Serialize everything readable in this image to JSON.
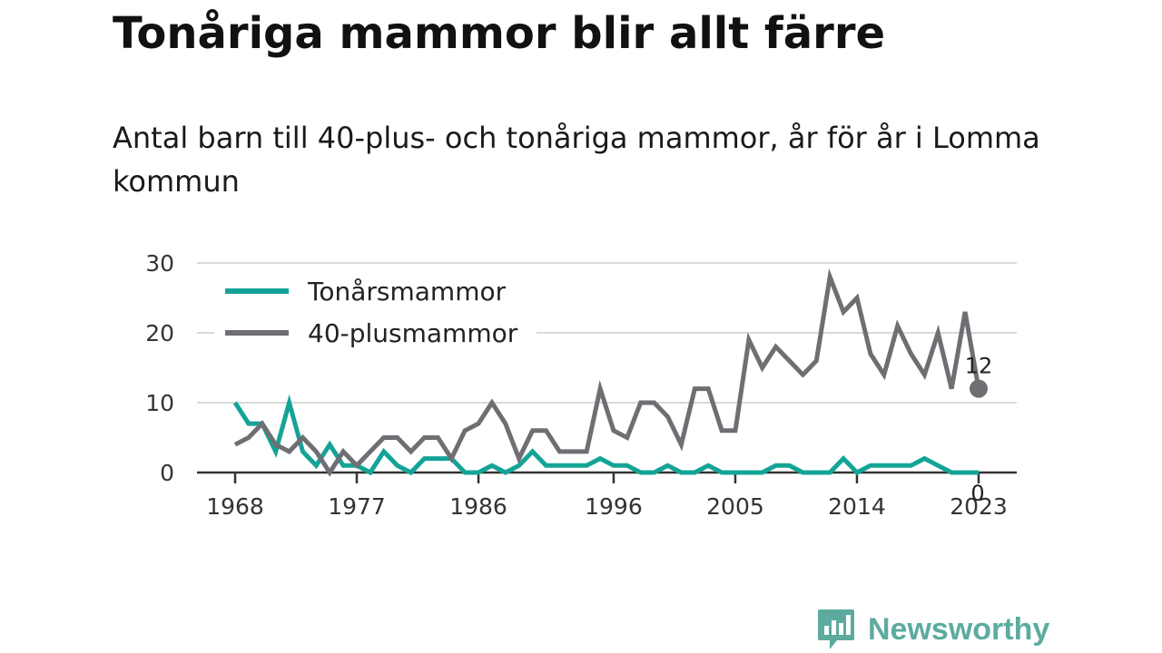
{
  "title": "Tonåriga mammor blir allt färre",
  "subtitle": "Antal barn till 40-plus- och tonåriga mammor, år för år i Lomma kommun",
  "brand": {
    "name": "Newsworthy",
    "icon": "newsworthy-logo-icon",
    "color": "#5cab9e"
  },
  "chart_data": {
    "type": "line",
    "title": "Tonåriga mammor blir allt färre",
    "subtitle": "Antal barn till 40-plus- och tonåriga mammor, år för år i Lomma kommun",
    "xlabel": "",
    "ylabel": "",
    "x": [
      1968,
      1969,
      1970,
      1971,
      1972,
      1973,
      1974,
      1975,
      1976,
      1977,
      1978,
      1979,
      1980,
      1981,
      1982,
      1983,
      1984,
      1985,
      1986,
      1987,
      1988,
      1989,
      1990,
      1991,
      1992,
      1993,
      1994,
      1995,
      1996,
      1997,
      1998,
      1999,
      2000,
      2001,
      2002,
      2003,
      2004,
      2005,
      2006,
      2007,
      2008,
      2009,
      2010,
      2011,
      2012,
      2013,
      2014,
      2015,
      2016,
      2017,
      2018,
      2019,
      2020,
      2021,
      2022,
      2023
    ],
    "xlim": [
      1968,
      2023
    ],
    "x_ticks": [
      "1968",
      "1977",
      "1986",
      "1996",
      "2005",
      "2014",
      "2023"
    ],
    "ylim": [
      0,
      30
    ],
    "y_ticks": [
      "0",
      "10",
      "20",
      "30"
    ],
    "grid": true,
    "legend_position": "top-left",
    "series": [
      {
        "name": "Tonårsmammor",
        "color": "#14a497",
        "values": [
          10,
          7,
          7,
          3,
          10,
          3,
          1,
          4,
          1,
          1,
          0,
          3,
          1,
          0,
          2,
          2,
          2,
          0,
          0,
          1,
          0,
          1,
          3,
          1,
          1,
          1,
          1,
          2,
          1,
          1,
          0,
          0,
          1,
          0,
          0,
          1,
          0,
          0,
          0,
          0,
          1,
          1,
          0,
          0,
          0,
          2,
          0,
          1,
          1,
          1,
          1,
          2,
          1,
          0,
          0,
          0
        ],
        "end_label": "0"
      },
      {
        "name": "40-plusmammor",
        "color": "#6e6e73",
        "values": [
          4,
          5,
          7,
          4,
          3,
          5,
          3,
          0,
          3,
          1,
          3,
          5,
          5,
          3,
          5,
          5,
          2,
          6,
          7,
          10,
          7,
          2,
          6,
          6,
          3,
          3,
          3,
          12,
          6,
          5,
          10,
          10,
          8,
          4,
          12,
          12,
          6,
          6,
          19,
          15,
          18,
          16,
          14,
          16,
          28,
          23,
          25,
          17,
          14,
          21,
          17,
          14,
          20,
          12,
          23,
          12
        ],
        "end_label": "12"
      }
    ]
  }
}
